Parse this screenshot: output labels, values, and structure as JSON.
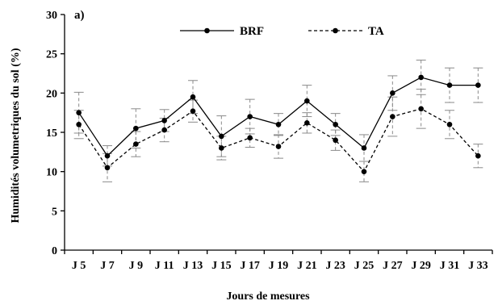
{
  "chart_data": {
    "type": "line",
    "panel_label": "a)",
    "xlabel": "Jours de mesures",
    "ylabel": "Humidités volumetriques du sol (%)",
    "ylim": [
      0,
      30
    ],
    "yticks": [
      0,
      5,
      10,
      15,
      20,
      25,
      30
    ],
    "grid": false,
    "legend_position": "top-center",
    "categories": [
      "J 5",
      "J 7",
      "J 9",
      "J 11",
      "J 13",
      "J 15",
      "J 17",
      "J 19",
      "J 21",
      "J 23",
      "J 25",
      "J 27",
      "J 29",
      "J 31",
      "J 33"
    ],
    "series": [
      {
        "name": "BRF",
        "line_style": "solid",
        "color": "#000000",
        "values": [
          17.5,
          12,
          15.5,
          16.5,
          19.5,
          14.5,
          17,
          16,
          19,
          16,
          13,
          20,
          22,
          21,
          21
        ],
        "error": [
          2.6,
          1.3,
          2.5,
          1.4,
          2.1,
          2.6,
          2.2,
          1.4,
          2.0,
          1.4,
          1.7,
          2.2,
          2.2,
          2.2,
          2.2
        ]
      },
      {
        "name": "TA",
        "line_style": "dashed",
        "color": "#000000",
        "values": [
          16,
          10.5,
          13.5,
          15.3,
          17.7,
          13,
          14.3,
          13.2,
          16.2,
          14,
          10,
          17,
          18,
          16,
          12
        ],
        "error": [
          1.8,
          1.8,
          1.6,
          1.5,
          1.4,
          1.5,
          1.2,
          1.5,
          1.3,
          1.3,
          1.3,
          2.5,
          2.5,
          1.8,
          1.5
        ]
      }
    ]
  }
}
